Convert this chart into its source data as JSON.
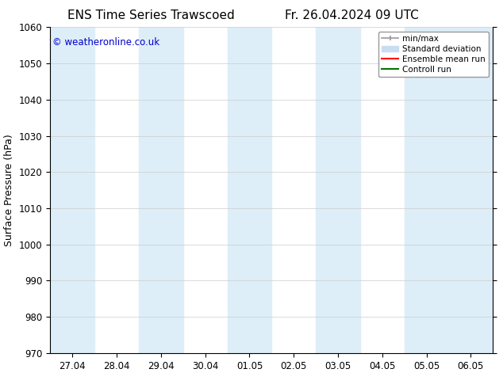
{
  "title_left": "ENS Time Series Trawscoed",
  "title_right": "Fr. 26.04.2024 09 UTC",
  "ylabel": "Surface Pressure (hPa)",
  "ylim": [
    970,
    1060
  ],
  "yticks": [
    970,
    980,
    990,
    1000,
    1010,
    1020,
    1030,
    1040,
    1050,
    1060
  ],
  "x_tick_labels": [
    "27.04",
    "28.04",
    "29.04",
    "30.04",
    "01.05",
    "02.05",
    "03.05",
    "04.05",
    "05.05",
    "06.05"
  ],
  "x_tick_positions": [
    0,
    1,
    2,
    3,
    4,
    5,
    6,
    7,
    8,
    9
  ],
  "xlim": [
    -0.5,
    9.5
  ],
  "shaded_bands": [
    {
      "x_start": -0.5,
      "x_end": 0.5,
      "color": "#ddeef8"
    },
    {
      "x_start": 1.5,
      "x_end": 2.5,
      "color": "#ddeef8"
    },
    {
      "x_start": 3.5,
      "x_end": 4.5,
      "color": "#ddeef8"
    },
    {
      "x_start": 5.5,
      "x_end": 6.5,
      "color": "#ddeef8"
    },
    {
      "x_start": 7.5,
      "x_end": 8.5,
      "color": "#ddeef8"
    },
    {
      "x_start": 8.5,
      "x_end": 9.5,
      "color": "#ddeef8"
    }
  ],
  "copyright_text": "© weatheronline.co.uk",
  "copyright_color": "#0000cc",
  "background_color": "#ffffff",
  "plot_bg_color": "#ffffff",
  "grid_color": "#cccccc",
  "legend_entries": [
    {
      "label": "min/max",
      "color": "#999999",
      "linewidth": 1.2
    },
    {
      "label": "Standard deviation",
      "color": "#c8ddf0",
      "linewidth": 6
    },
    {
      "label": "Ensemble mean run",
      "color": "#ff0000",
      "linewidth": 1.5
    },
    {
      "label": "Controll run",
      "color": "#007700",
      "linewidth": 1.5
    }
  ],
  "title_fontsize": 11,
  "tick_fontsize": 8.5,
  "label_fontsize": 9,
  "copyright_fontsize": 8.5
}
